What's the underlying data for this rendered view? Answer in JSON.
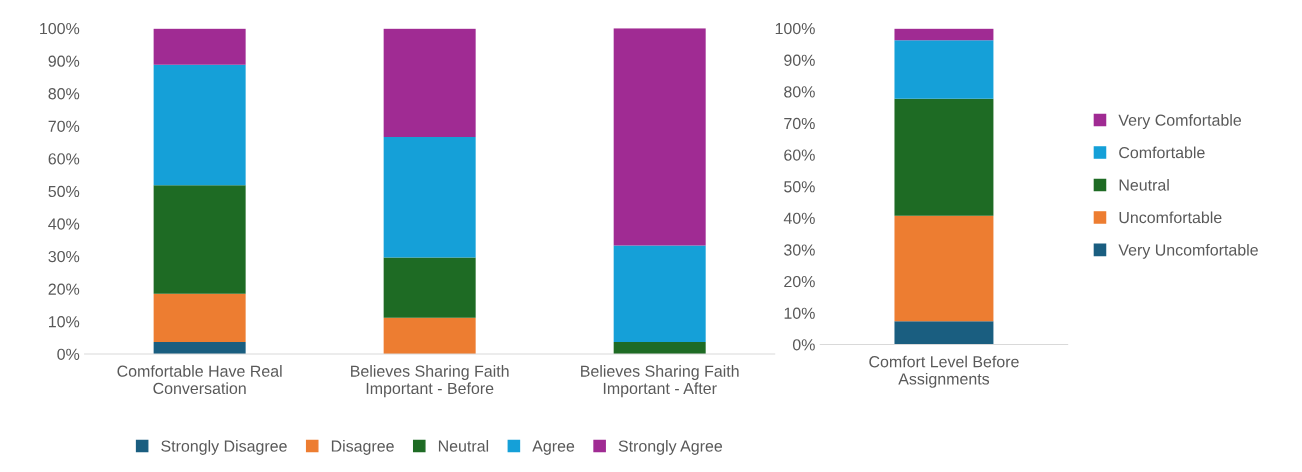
{
  "chart_data": [
    {
      "type": "bar",
      "stacked": true,
      "categories": [
        "Comfortable Have Real Conversation",
        "Believes Sharing Faith Important - Before",
        "Believes Sharing Faith Important - After"
      ],
      "series": [
        {
          "name": "Strongly Disagree",
          "color": "#1a5e80",
          "values": [
            3.7,
            0,
            0
          ]
        },
        {
          "name": "Disagree",
          "color": "#ed7d31",
          "values": [
            14.8,
            11.1,
            0
          ]
        },
        {
          "name": "Neutral",
          "color": "#1e6b24",
          "values": [
            33.3,
            18.5,
            3.7
          ]
        },
        {
          "name": "Agree",
          "color": "#15a0d8",
          "values": [
            37.0,
            37.0,
            29.6
          ]
        },
        {
          "name": "Strongly Agree",
          "color": "#a02b93",
          "values": [
            11.1,
            33.3,
            66.7
          ]
        }
      ],
      "ylim": [
        0,
        100
      ],
      "yticks": [
        {
          "value": 0,
          "label": "0%"
        },
        {
          "value": 10,
          "label": "10%"
        },
        {
          "value": 20,
          "label": "20%"
        },
        {
          "value": 30,
          "label": "30%"
        },
        {
          "value": 40,
          "label": "40%"
        },
        {
          "value": 50,
          "label": "50%"
        },
        {
          "value": 60,
          "label": "60%"
        },
        {
          "value": 70,
          "label": "70%"
        },
        {
          "value": 80,
          "label": "80%"
        },
        {
          "value": 90,
          "label": "90%"
        },
        {
          "value": 100,
          "label": "100%"
        }
      ],
      "legend": "bottom",
      "grid": false
    },
    {
      "type": "bar",
      "stacked": true,
      "categories": [
        "Comfort Level Before Assignments"
      ],
      "series": [
        {
          "name": "Very Uncomfortable",
          "color": "#1a5e80",
          "values": [
            7.4
          ]
        },
        {
          "name": "Uncomfortable",
          "color": "#ed7d31",
          "values": [
            33.3
          ]
        },
        {
          "name": "Neutral",
          "color": "#1e6b24",
          "values": [
            37.0
          ]
        },
        {
          "name": "Comfortable",
          "color": "#15a0d8",
          "values": [
            18.5
          ]
        },
        {
          "name": "Very Comfortable",
          "color": "#a02b93",
          "values": [
            3.7
          ]
        }
      ],
      "ylim": [
        0,
        100
      ],
      "yticks": [
        {
          "value": 0,
          "label": "0%"
        },
        {
          "value": 10,
          "label": "10%"
        },
        {
          "value": 20,
          "label": "20%"
        },
        {
          "value": 30,
          "label": "30%"
        },
        {
          "value": 40,
          "label": "40%"
        },
        {
          "value": 50,
          "label": "50%"
        },
        {
          "value": 60,
          "label": "60%"
        },
        {
          "value": 70,
          "label": "70%"
        },
        {
          "value": 80,
          "label": "80%"
        },
        {
          "value": 90,
          "label": "90%"
        },
        {
          "value": 100,
          "label": "100%"
        }
      ],
      "legend": "right",
      "grid": false
    }
  ]
}
